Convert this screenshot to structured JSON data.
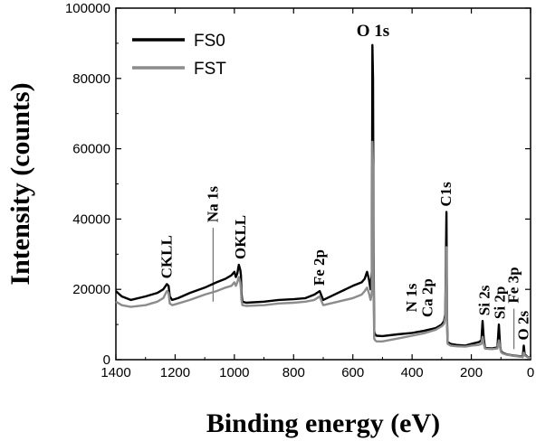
{
  "chart_data": {
    "type": "line",
    "title": "",
    "xlabel": "Binding energy (eV)",
    "ylabel": "Intensity (counts)",
    "xlim": [
      1400,
      0
    ],
    "ylim": [
      0,
      100000
    ],
    "x_reversed": true,
    "x_ticks": [
      "1400",
      "1200",
      "1000",
      "800",
      "600",
      "400",
      "200",
      "0"
    ],
    "y_ticks": [
      "0",
      "20000",
      "40000",
      "60000",
      "80000",
      "100000"
    ],
    "grid": false,
    "legend_position": "top-left",
    "series": [
      {
        "name": "FS0",
        "color": "#000000",
        "x": [
          1400,
          1380,
          1350,
          1300,
          1260,
          1240,
          1228,
          1222,
          1218,
          1210,
          1190,
          1150,
          1100,
          1060,
          1030,
          1010,
          1000,
          995,
          990,
          985,
          980,
          978,
          976,
          973,
          960,
          900,
          850,
          800,
          760,
          730,
          712,
          705,
          700,
          650,
          600,
          570,
          560,
          552,
          546,
          540,
          536,
          534,
          532,
          530,
          528,
          525,
          520,
          500,
          450,
          400,
          360,
          320,
          300,
          292,
          288,
          286,
          284,
          282,
          280,
          270,
          250,
          220,
          200,
          175,
          166,
          162,
          158,
          154,
          150,
          130,
          112,
          107,
          103,
          100,
          95,
          80,
          60,
          40,
          30,
          27,
          25,
          23,
          20,
          10,
          0
        ],
        "y": [
          19500,
          18000,
          17000,
          18000,
          19000,
          20000,
          21500,
          21000,
          18000,
          17000,
          17500,
          19000,
          20500,
          22000,
          23000,
          24000,
          25000,
          23500,
          24500,
          27000,
          25500,
          24000,
          19000,
          16500,
          16200,
          16500,
          17000,
          17200,
          17500,
          18500,
          19500,
          18000,
          17000,
          19000,
          21000,
          22000,
          23000,
          25000,
          23000,
          20000,
          25000,
          89500,
          80000,
          30000,
          8000,
          7200,
          6800,
          6700,
          7200,
          7600,
          8200,
          9000,
          10000,
          11000,
          13000,
          26000,
          42000,
          12000,
          5000,
          4500,
          4200,
          4000,
          4500,
          5000,
          5500,
          11000,
          6000,
          3500,
          3300,
          3200,
          3500,
          10000,
          4000,
          2500,
          2000,
          1500,
          1200,
          1000,
          900,
          800,
          2000,
          4000,
          1500,
          800,
          500
        ]
      },
      {
        "name": "FST",
        "color": "#8c8c8c",
        "x": [
          1400,
          1380,
          1350,
          1300,
          1260,
          1240,
          1228,
          1222,
          1218,
          1210,
          1190,
          1150,
          1100,
          1060,
          1030,
          1010,
          1000,
          995,
          990,
          985,
          980,
          978,
          976,
          973,
          960,
          900,
          850,
          800,
          760,
          730,
          712,
          705,
          700,
          650,
          600,
          570,
          560,
          552,
          546,
          540,
          536,
          534,
          532,
          530,
          528,
          525,
          520,
          500,
          450,
          400,
          360,
          320,
          300,
          292,
          288,
          286,
          284,
          282,
          280,
          270,
          250,
          220,
          200,
          175,
          166,
          162,
          158,
          154,
          150,
          130,
          112,
          107,
          103,
          100,
          95,
          80,
          60,
          40,
          30,
          27,
          25,
          23,
          20,
          10,
          0
        ],
        "y": [
          16500,
          15500,
          15000,
          15500,
          16500,
          17500,
          19500,
          19000,
          16000,
          15500,
          16000,
          17000,
          18500,
          19500,
          20500,
          21000,
          22000,
          21000,
          22000,
          23500,
          22000,
          20000,
          17000,
          15500,
          15300,
          15500,
          16000,
          16200,
          16500,
          17000,
          18000,
          16500,
          15500,
          16500,
          17500,
          18500,
          19500,
          20500,
          19000,
          17000,
          19000,
          62000,
          55000,
          22000,
          6000,
          5500,
          5200,
          5200,
          6000,
          6800,
          7500,
          8500,
          9500,
          10200,
          12000,
          22000,
          32000,
          10000,
          4500,
          4000,
          3800,
          3700,
          4000,
          4200,
          4500,
          6500,
          4500,
          3200,
          3100,
          3000,
          3200,
          5500,
          3500,
          2200,
          1800,
          1400,
          1100,
          900,
          800,
          700,
          1200,
          2000,
          1200,
          700,
          400
        ]
      }
    ],
    "annotations": [
      {
        "text": "O 1s",
        "x": 532,
        "y": 89500,
        "style": "big",
        "rotate": false
      },
      {
        "text": "C1s",
        "x": 284,
        "y": 42000,
        "style": "normal",
        "rotate": true
      },
      {
        "text": "CKLL",
        "x": 1228,
        "y": 21500,
        "style": "normal",
        "rotate": true
      },
      {
        "text": "Na 1s",
        "x": 1072,
        "y": 37500,
        "style": "normal",
        "rotate": true
      },
      {
        "text": "OKLL",
        "x": 978,
        "y": 27000,
        "style": "normal",
        "rotate": true
      },
      {
        "text": "Fe 2p",
        "x": 712,
        "y": 19500,
        "style": "normal",
        "rotate": true
      },
      {
        "text": "N 1s",
        "x": 400,
        "y": 12000,
        "style": "normal",
        "rotate": true
      },
      {
        "text": "Ca 2p",
        "x": 347,
        "y": 10500,
        "style": "normal",
        "rotate": true
      },
      {
        "text": "Si 2s",
        "x": 154,
        "y": 11000,
        "style": "normal",
        "rotate": true
      },
      {
        "text": "Si 2p",
        "x": 103,
        "y": 10000,
        "style": "normal",
        "rotate": true
      },
      {
        "text": "Fe 3p",
        "x": 56,
        "y": 14500,
        "style": "normal",
        "rotate": true
      },
      {
        "text": "O 2s",
        "x": 23,
        "y": 4000,
        "style": "normal",
        "rotate": true
      }
    ],
    "marker_lines": [
      {
        "x": 1072,
        "y_from": 16500,
        "y_to": 37500
      },
      {
        "x": 56,
        "y_from": 3000,
        "y_to": 14500
      }
    ]
  }
}
